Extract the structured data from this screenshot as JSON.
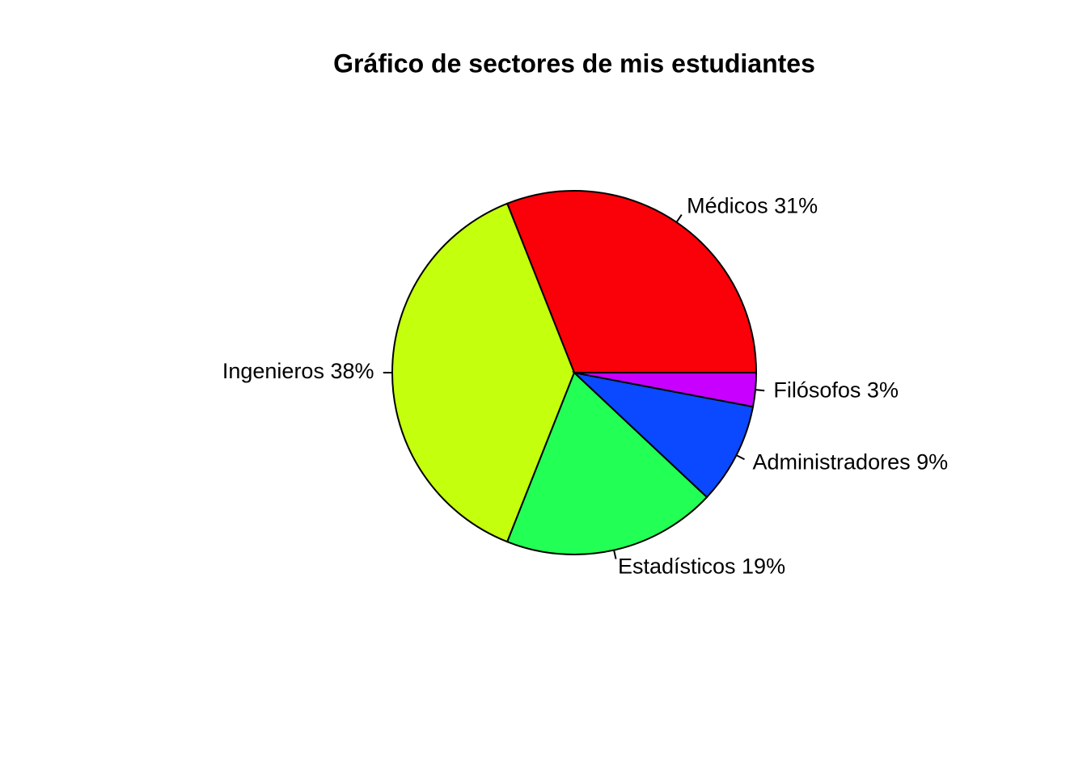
{
  "chart_data": {
    "type": "pie",
    "title": "Gráfico de sectores de mis estudiantes",
    "categories": [
      "Médicos 31%",
      "Ingenieros 38%",
      "Estadísticos 19%",
      "Administradores 9%",
      "Filósofos 3%"
    ],
    "values": [
      31,
      38,
      19,
      9,
      3
    ],
    "colors": [
      "#FA0008",
      "#C4FF0E",
      "#22FF55",
      "#0A49FF",
      "#C800FF"
    ],
    "start_angle": 0,
    "direction": "counterclockwise"
  }
}
